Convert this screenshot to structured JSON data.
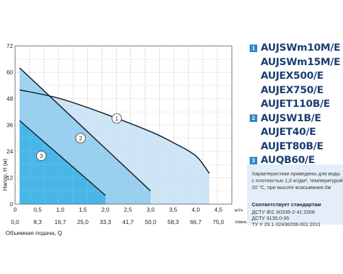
{
  "chart_data": {
    "type": "line",
    "xlabel": "Объемная подача, Q",
    "ylabel": "Напор, Н (м)",
    "x_units_top": "м³/ч",
    "x_units_bottom": "л/мин",
    "xlim": [
      0,
      4.8
    ],
    "ylim": [
      0,
      72
    ],
    "y_ticks": [
      "0",
      "12",
      "24",
      "36",
      "48",
      "60",
      "72"
    ],
    "x_ticks_top": [
      "0",
      "0,5",
      "1,0",
      "1,5",
      "2,0",
      "2,5",
      "3,0",
      "3,5",
      "4,0",
      "4,5"
    ],
    "x_ticks_bottom": [
      "0,0",
      "8,3",
      "16,7",
      "25,0",
      "33,3",
      "41,7",
      "50,0",
      "58,3",
      "66,7",
      "75,0"
    ],
    "grid": true,
    "series": [
      {
        "name": "1",
        "x": [
          0.1,
          1.0,
          2.0,
          3.0,
          3.5,
          4.0,
          4.3
        ],
        "y": [
          52,
          48,
          41,
          33,
          28,
          22,
          14
        ]
      },
      {
        "name": "2",
        "x": [
          0.1,
          3.0
        ],
        "y": [
          62,
          6
        ]
      },
      {
        "name": "3",
        "x": [
          0.1,
          2.0
        ],
        "y": [
          38,
          4
        ]
      }
    ],
    "colors": {
      "fill_1": "#c6e1f3",
      "fill_2": "#8ecbed",
      "fill_3": "#3ab3e6",
      "line": "#1a2433",
      "grid": "#6a6a6a"
    }
  },
  "legend": {
    "groups": [
      {
        "badge": "1",
        "models": [
          "AUJSWm10M/E",
          "AUJSWm15M/E",
          "AUJEX500/E",
          "AUJEX750/E",
          "AUJET110B/E"
        ]
      },
      {
        "badge": "2",
        "models": [
          "AUJSW1B/E",
          "AUJET40/E",
          "AUJET80B/E"
        ]
      },
      {
        "badge": "3",
        "models": [
          "AUQB60/E"
        ]
      }
    ]
  },
  "info": {
    "lines": [
      "Характеристики приведены для воды",
      "с плотностью 1,0 кг/дм³, температурой",
      "20 °С, при высоте всасывания 0м"
    ],
    "standards_title": "Соответствует стандартам",
    "standards": [
      "ДСТУ IEC 60335-2-41:2006",
      "ДСТУ 3135.0-95",
      "ТУ У 29.1-32436208-001:2011"
    ]
  }
}
